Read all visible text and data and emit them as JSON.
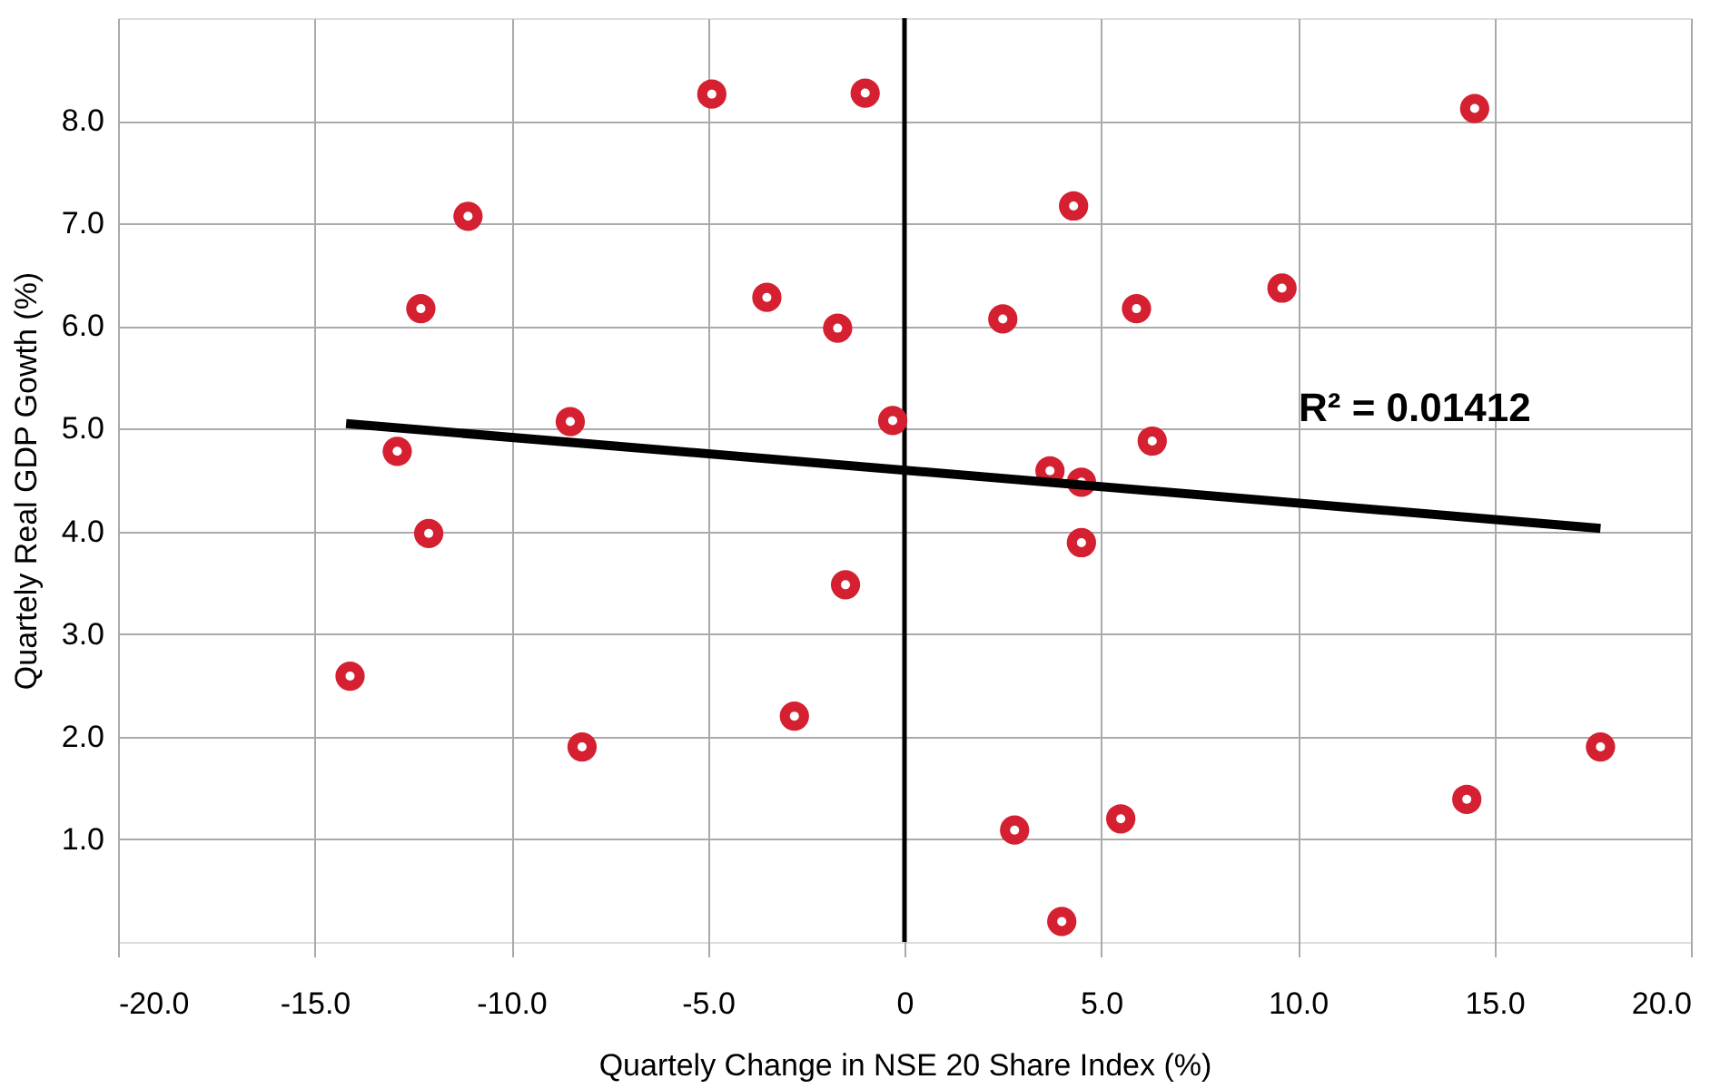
{
  "chart_data": {
    "type": "scatter",
    "xlabel": "Quartely Change in NSE 20 Share Index (%)",
    "ylabel": "Quartely Real GDP Gowth (%)",
    "series": [
      {
        "color": "#d42030",
        "x": [
          -4.9,
          -1.0,
          -11.1,
          -12.3,
          -3.5,
          -1.7,
          -8.5,
          -12.9,
          -12.1,
          14.5,
          4.3,
          2.5,
          5.9,
          9.6,
          -0.3,
          3.7,
          4.5,
          6.3,
          4.5,
          -1.5,
          -14.1,
          -8.2,
          -2.8,
          17.7,
          14.3,
          2.8,
          5.5,
          4.0
        ],
        "values": [
          8.26,
          8.27,
          7.07,
          6.17,
          6.28,
          5.98,
          5.07,
          4.78,
          3.98,
          8.12,
          7.17,
          6.07,
          6.17,
          6.37,
          5.08,
          4.59,
          4.48,
          4.88,
          3.89,
          3.48,
          2.59,
          1.9,
          2.2,
          1.9,
          1.39,
          1.09,
          1.2,
          0.2
        ]
      },
      {
        "type": "line",
        "color": "#000000",
        "x": [
          -14.2,
          17.7
        ],
        "values": [
          5.05,
          4.03
        ]
      }
    ],
    "xlim": [
      -20,
      20
    ],
    "xticks": [
      {
        "value": -20,
        "label": "-20.0"
      },
      {
        "value": -15,
        "label": "-15.0"
      },
      {
        "value": -10,
        "label": "-10.0"
      },
      {
        "value": -5,
        "label": "-5.0"
      },
      {
        "value": 0,
        "label": "0"
      },
      {
        "value": 5,
        "label": "5.0"
      },
      {
        "value": 10,
        "label": "10.0"
      },
      {
        "value": 15,
        "label": "15.0"
      },
      {
        "value": 20,
        "label": "20.0"
      }
    ],
    "ylim": [
      0,
      9
    ],
    "yticks": [
      {
        "value": 1,
        "label": "1.0"
      },
      {
        "value": 2,
        "label": "2.0"
      },
      {
        "value": 3,
        "label": "3.0"
      },
      {
        "value": 4,
        "label": "4.0"
      },
      {
        "value": 5,
        "label": "5.0"
      },
      {
        "value": 6,
        "label": "6.0"
      },
      {
        "value": 7,
        "label": "7.0"
      },
      {
        "value": 8,
        "label": "8.0"
      }
    ],
    "ref_lines": [
      {
        "axis": "x",
        "value": 0,
        "color": "#000000"
      }
    ],
    "annotations": [
      "R² = 0.01412"
    ],
    "grid": true
  }
}
